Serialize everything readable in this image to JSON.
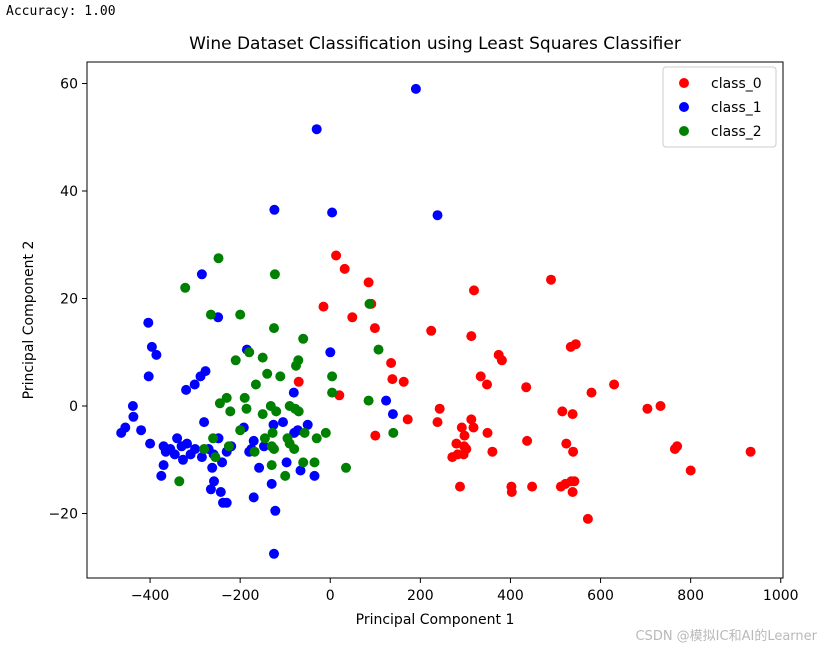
{
  "console_output": "Accuracy: 1.00",
  "watermark": "CSDN @模拟IC和AI的Learner",
  "chart_data": {
    "type": "scatter",
    "title": "Wine Dataset Classification using Least Squares Classifier",
    "xlabel": "Principal Component 1",
    "ylabel": "Principal Component 2",
    "xlim": [
      -540,
      1005
    ],
    "ylim": [
      -32,
      64
    ],
    "xticks": [
      -400,
      -200,
      0,
      200,
      400,
      600,
      800,
      1000
    ],
    "yticks": [
      -20,
      0,
      20,
      40,
      60
    ],
    "grid": false,
    "legend_position": "top-right",
    "series": [
      {
        "name": "class_0",
        "color": "#ff0000",
        "points": [
          [
            13,
            28
          ],
          [
            32,
            25.5
          ],
          [
            85,
            23
          ],
          [
            91,
            19
          ],
          [
            -15,
            18.5
          ],
          [
            49,
            16.5
          ],
          [
            99,
            14.5
          ],
          [
            135,
            8
          ],
          [
            163,
            4.5
          ],
          [
            -70,
            4.5
          ],
          [
            20,
            2
          ],
          [
            100,
            -5.5
          ],
          [
            172,
            -2.5
          ],
          [
            138,
            5
          ],
          [
            224,
            14
          ],
          [
            319,
            21.5
          ],
          [
            313,
            13
          ],
          [
            374,
            9.5
          ],
          [
            381,
            8.5
          ],
          [
            334,
            5.5
          ],
          [
            348,
            4
          ],
          [
            435,
            3.5
          ],
          [
            490,
            23.5
          ],
          [
            534,
            11
          ],
          [
            545,
            11.5
          ],
          [
            630,
            4
          ],
          [
            580,
            2.5
          ],
          [
            243,
            -0.5
          ],
          [
            238,
            -3
          ],
          [
            292,
            -4
          ],
          [
            313,
            -2.5
          ],
          [
            318,
            -4
          ],
          [
            298,
            -5.5
          ],
          [
            349,
            -5
          ],
          [
            280,
            -7
          ],
          [
            297,
            -7.5
          ],
          [
            302,
            -8
          ],
          [
            296,
            -9
          ],
          [
            283,
            -9
          ],
          [
            271,
            -9.5
          ],
          [
            360,
            -8.5
          ],
          [
            437,
            -6.5
          ],
          [
            515,
            -1
          ],
          [
            538,
            -1.5
          ],
          [
            704,
            -0.5
          ],
          [
            733,
            0
          ],
          [
            524,
            -7
          ],
          [
            539,
            -8.5
          ],
          [
            770,
            -7.5
          ],
          [
            765,
            -8
          ],
          [
            933,
            -8.5
          ],
          [
            800,
            -12
          ],
          [
            402,
            -15
          ],
          [
            403,
            -16
          ],
          [
            448,
            -15
          ],
          [
            512,
            -15
          ],
          [
            522,
            -14.5
          ],
          [
            535,
            -14
          ],
          [
            542,
            -14
          ],
          [
            538,
            -16
          ],
          [
            572,
            -21
          ],
          [
            288,
            -15
          ]
        ]
      },
      {
        "name": "class_1",
        "color": "#0000ff",
        "points": [
          [
            190,
            59
          ],
          [
            -30,
            51.5
          ],
          [
            238,
            35.5
          ],
          [
            -124,
            36.5
          ],
          [
            4,
            36
          ],
          [
            -285,
            24.5
          ],
          [
            -249,
            16.5
          ],
          [
            -404,
            15.5
          ],
          [
            -396,
            11
          ],
          [
            -386,
            9.5
          ],
          [
            0,
            10
          ],
          [
            -185,
            10.5
          ],
          [
            -277,
            6.5
          ],
          [
            -288,
            5.5
          ],
          [
            -301,
            4
          ],
          [
            -320,
            3
          ],
          [
            -403,
            5.5
          ],
          [
            -175,
            -8
          ],
          [
            -81,
            2.5
          ],
          [
            124,
            1
          ],
          [
            139,
            -1.5
          ],
          [
            -438,
            0
          ],
          [
            -437,
            -2
          ],
          [
            -464,
            -5
          ],
          [
            -455,
            -4
          ],
          [
            -420,
            -4.5
          ],
          [
            -400,
            -7
          ],
          [
            -370,
            -7.5
          ],
          [
            -365,
            -8.5
          ],
          [
            -355,
            -8
          ],
          [
            -345,
            -9
          ],
          [
            -340,
            -6
          ],
          [
            -330,
            -7.5
          ],
          [
            -318,
            -7
          ],
          [
            -310,
            -9
          ],
          [
            -300,
            -8
          ],
          [
            -285,
            -9.5
          ],
          [
            -280,
            -3
          ],
          [
            -270,
            -8
          ],
          [
            -259,
            -9
          ],
          [
            -248,
            -6
          ],
          [
            -240,
            -10.5
          ],
          [
            -230,
            -8.5
          ],
          [
            -220,
            -7.5
          ],
          [
            -192,
            -4
          ],
          [
            -180,
            -8.5
          ],
          [
            -170,
            -6.5
          ],
          [
            -158,
            -11.5
          ],
          [
            -147,
            -7.5
          ],
          [
            -126,
            -3.5
          ],
          [
            -105,
            -3
          ],
          [
            -97,
            -10.5
          ],
          [
            -80,
            -5
          ],
          [
            -72,
            -4.5
          ],
          [
            -66,
            -12
          ],
          [
            -50,
            -3.5
          ],
          [
            -35,
            -13
          ],
          [
            -370,
            -11
          ],
          [
            -375,
            -13
          ],
          [
            -327,
            -10
          ],
          [
            -262,
            -11.5
          ],
          [
            -265,
            -15.5
          ],
          [
            -258,
            -14
          ],
          [
            -243,
            -16
          ],
          [
            -238,
            -18
          ],
          [
            -230,
            -18
          ],
          [
            -170,
            -17
          ],
          [
            -130,
            -14.5
          ],
          [
            -122,
            -19.5
          ],
          [
            -125,
            -27.5
          ]
        ]
      },
      {
        "name": "class_2",
        "color": "#008000",
        "points": [
          [
            -248,
            27.5
          ],
          [
            -322,
            22
          ],
          [
            -123,
            24.5
          ],
          [
            -265,
            17
          ],
          [
            -200,
            17
          ],
          [
            -125,
            14.5
          ],
          [
            -60,
            12.5
          ],
          [
            87,
            19
          ],
          [
            107,
            10.5
          ],
          [
            -210,
            8.5
          ],
          [
            -180,
            10
          ],
          [
            -150,
            9
          ],
          [
            -76,
            7.5
          ],
          [
            -71,
            8.5
          ],
          [
            -140,
            6
          ],
          [
            -111,
            5.5
          ],
          [
            4,
            5.5
          ],
          [
            4,
            2.5
          ],
          [
            -165,
            4
          ],
          [
            -245,
            0.5
          ],
          [
            -230,
            1.5
          ],
          [
            -222,
            -1
          ],
          [
            -190,
            1.5
          ],
          [
            -186,
            -0.5
          ],
          [
            -150,
            -1.5
          ],
          [
            -132,
            0
          ],
          [
            -120,
            -1
          ],
          [
            -90,
            0
          ],
          [
            -78,
            -0.5
          ],
          [
            -70,
            -1
          ],
          [
            85,
            1
          ],
          [
            140,
            -5
          ],
          [
            -130,
            -7.5
          ],
          [
            -125,
            -8
          ],
          [
            -95,
            -6
          ],
          [
            -260,
            -6
          ],
          [
            -225,
            -7.5
          ],
          [
            -200,
            -4.5
          ],
          [
            -168,
            -8.5
          ],
          [
            -145,
            -6
          ],
          [
            -128,
            -5
          ],
          [
            -90,
            -7
          ],
          [
            -80,
            -8
          ],
          [
            -57,
            -5
          ],
          [
            -30,
            -6
          ],
          [
            -10,
            -5
          ],
          [
            -130,
            -11
          ],
          [
            -100,
            -13
          ],
          [
            -60,
            -10.5
          ],
          [
            -35,
            -10.5
          ],
          [
            -335,
            -14
          ],
          [
            35,
            -11.5
          ],
          [
            -280,
            -8
          ],
          [
            -255,
            -9.5
          ]
        ]
      }
    ]
  }
}
